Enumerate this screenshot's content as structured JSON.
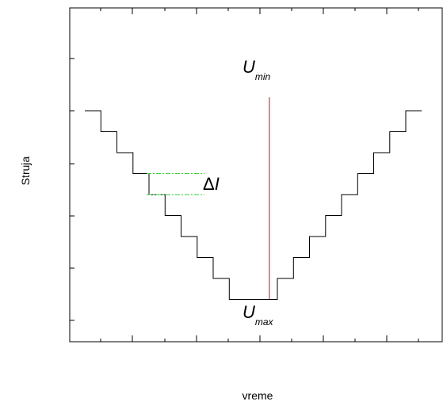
{
  "chart_data": {
    "type": "line",
    "title": "",
    "xlabel": "vreme",
    "ylabel": "Struja",
    "x_ticks_labeled": false,
    "y_ticks_labeled": false,
    "grid": false,
    "series": [
      {
        "style": "step",
        "color": "#000000",
        "x": [
          0,
          0.5,
          0.5,
          1,
          1,
          1.5,
          1.5,
          2,
          2,
          2.5,
          2.5,
          3,
          3,
          3.5,
          3.5,
          4,
          4,
          4.5,
          4.5,
          5,
          5,
          5.5,
          5.5,
          6,
          6,
          6.5,
          6.5,
          7,
          7,
          7.5,
          7.5,
          8,
          8,
          8.5,
          8.5,
          9,
          9,
          9.5,
          9.5,
          10,
          10,
          10.5
        ],
        "y": [
          0,
          0,
          -1,
          -1,
          -2,
          -2,
          -3,
          -3,
          -4,
          -4,
          -5,
          -5,
          -6,
          -6,
          -7,
          -7,
          -8,
          -8,
          -9,
          -9,
          -9,
          -9,
          -9,
          -9,
          -8,
          -8,
          -7,
          -7,
          -6,
          -6,
          -5,
          -5,
          -4,
          -4,
          -3,
          -3,
          -2,
          -2,
          -1,
          -1,
          0,
          0
        ]
      }
    ],
    "annotations": {
      "vertical_line": {
        "x": 5.75,
        "color": "#e8595e"
      },
      "top_label": {
        "main": "U",
        "sub": "min"
      },
      "bottom_label": {
        "main": "U",
        "sub": "max"
      },
      "delta_label": {
        "prefix": "Δ",
        "var": "I"
      },
      "delta_guides": {
        "y_top": -3,
        "y_bottom": -4,
        "color": "#33cc33"
      }
    }
  }
}
